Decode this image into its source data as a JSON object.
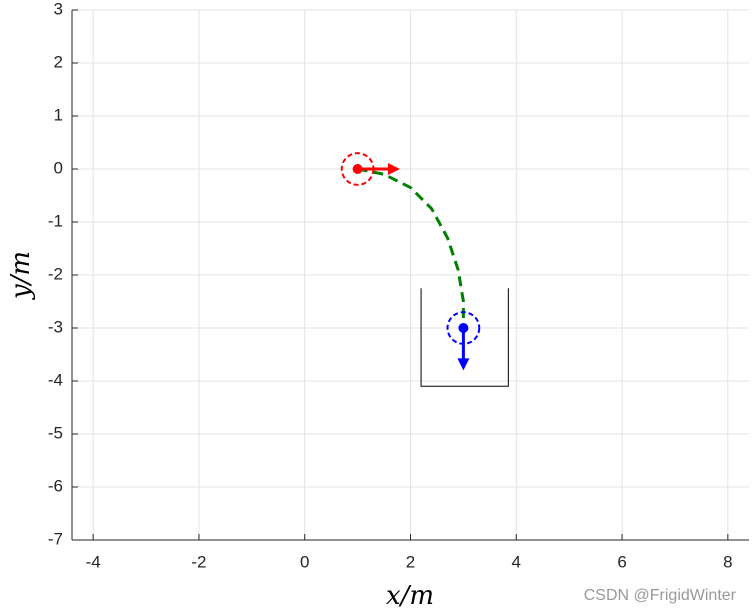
{
  "chart_data": {
    "type": "line",
    "xlabel": "x/m",
    "ylabel": "y/m",
    "xlim": [
      -4.4,
      8.4
    ],
    "ylim": [
      -7,
      3
    ],
    "xticks": [
      -4,
      -2,
      0,
      2,
      4,
      6,
      8
    ],
    "yticks": [
      3,
      2,
      1,
      0,
      -1,
      -2,
      -3,
      -4,
      -5,
      -6,
      -7
    ],
    "grid": true,
    "series": [
      {
        "color": "#008000",
        "style": "dashed",
        "x": [
          1,
          1.5,
          2,
          2.4,
          2.7,
          2.9,
          3,
          3
        ],
        "values": [
          0,
          -0.1,
          -0.35,
          -0.75,
          -1.3,
          -1.9,
          -2.5,
          -2.9
        ]
      }
    ],
    "poses": [
      {
        "color": "#ff0000",
        "x": 1,
        "y": 0,
        "heading": 0,
        "radius": 0.3,
        "arrow_length": 0.8
      },
      {
        "color": "#0000ff",
        "x": 3,
        "y": -3,
        "heading": -90,
        "radius": 0.3,
        "arrow_length": 0.8
      }
    ],
    "slot": {
      "color": "#000000",
      "x": [
        2.2,
        2.2,
        3.85,
        3.85
      ],
      "y": [
        -2.25,
        -4.1,
        -4.1,
        -2.25
      ]
    }
  },
  "watermark": "CSDN @FrigidWinter"
}
